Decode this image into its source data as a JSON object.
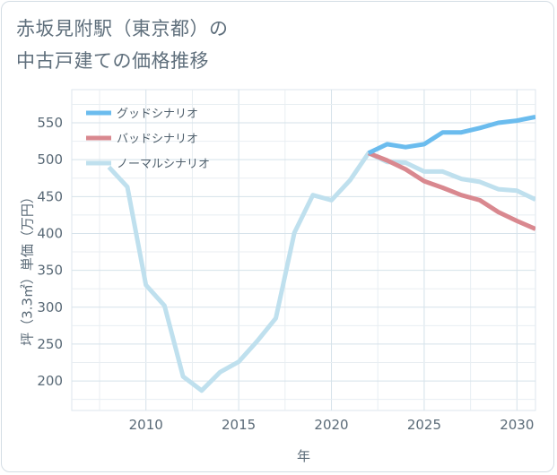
{
  "title_lines": [
    "赤坂見附駅（東京都）の",
    "中古戸建ての価格推移"
  ],
  "chart_data": {
    "type": "line",
    "title": "赤坂見附駅（東京都）の中古戸建ての価格推移",
    "xlabel": "年",
    "ylabel": "坪（3.3㎡）単価（万円）",
    "xlim": [
      2006,
      2031
    ],
    "ylim": [
      160,
      595
    ],
    "xticks": [
      2010,
      2015,
      2020,
      2025,
      2030
    ],
    "yticks": [
      200,
      250,
      300,
      350,
      400,
      450,
      500,
      550
    ],
    "grid": true,
    "legend_position": "top-left",
    "series": [
      {
        "name": "グッドシナリオ",
        "color": "#6bbcee",
        "x": [
          2022,
          2023,
          2024,
          2025,
          2026,
          2027,
          2028,
          2029,
          2030,
          2031
        ],
        "values": [
          509,
          521,
          517,
          521,
          537,
          537,
          543,
          550,
          553,
          558
        ]
      },
      {
        "name": "バッドシナリオ",
        "color": "#d9888f",
        "x": [
          2022,
          2023,
          2024,
          2025,
          2026,
          2027,
          2028,
          2029,
          2030,
          2031
        ],
        "values": [
          509,
          499,
          487,
          471,
          462,
          452,
          445,
          429,
          417,
          406
        ]
      },
      {
        "name": "ノーマルシナリオ",
        "color": "#bfe0ee",
        "x": [
          2008,
          2009,
          2010,
          2011,
          2012,
          2013,
          2014,
          2015,
          2016,
          2017,
          2018,
          2019,
          2020,
          2021,
          2022,
          2023,
          2024,
          2025,
          2026,
          2027,
          2028,
          2029,
          2030,
          2031
        ],
        "values": [
          490,
          463,
          330,
          302,
          206,
          187,
          212,
          226,
          254,
          285,
          401,
          452,
          445,
          472,
          509,
          497,
          496,
          484,
          484,
          474,
          470,
          460,
          458,
          446
        ]
      }
    ]
  }
}
